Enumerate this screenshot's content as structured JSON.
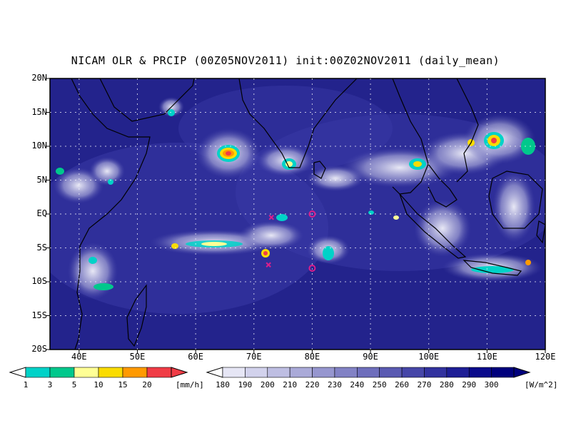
{
  "title": "NICAM OLR & PRCIP (00Z05NOV2011) init:00Z02NOV2011 (daily_mean)",
  "map": {
    "lat_labels": [
      "20N",
      "15N",
      "10N",
      "5N",
      "EQ",
      "5S",
      "10S",
      "15S",
      "20S"
    ],
    "lon_labels": [
      "40E",
      "50E",
      "60E",
      "70E",
      "80E",
      "90E",
      "100E",
      "110E",
      "120E"
    ],
    "lon_range": [
      35,
      120
    ],
    "lat_range": [
      -20,
      20
    ],
    "markers": [
      {
        "type": "x",
        "lon": 73,
        "lat": -0.5
      },
      {
        "type": "x",
        "lon": 72.5,
        "lat": -7.5
      },
      {
        "type": "o",
        "lon": 80,
        "lat": 0
      },
      {
        "type": "o",
        "lon": 80,
        "lat": -8
      }
    ]
  },
  "precip_bar": {
    "labels": [
      "1",
      "3",
      "5",
      "10",
      "15",
      "20"
    ],
    "unit": "[mm/h]",
    "colors": [
      "#00d2c8",
      "#00c88c",
      "#ffff96",
      "#fadc00",
      "#ff9a00",
      "#f03c46"
    ]
  },
  "olr_bar": {
    "labels": [
      "180",
      "190",
      "200",
      "210",
      "220",
      "230",
      "240",
      "250",
      "260",
      "270",
      "280",
      "290",
      "300"
    ],
    "unit": "[W/m^2]",
    "colors": [
      "#e6e6f5",
      "#d2d2ec",
      "#bebee2",
      "#aaaad8",
      "#9696cf",
      "#8282c5",
      "#6e6ebc",
      "#5a5ab2",
      "#4646a8",
      "#32329f",
      "#1e1e96",
      "#0a0a8c",
      "#00007d"
    ]
  },
  "colors": {
    "ocean": "#23238c",
    "land": "#2a2a96",
    "cloud": "#e8e8f5",
    "marker": "#dc1e8c"
  }
}
